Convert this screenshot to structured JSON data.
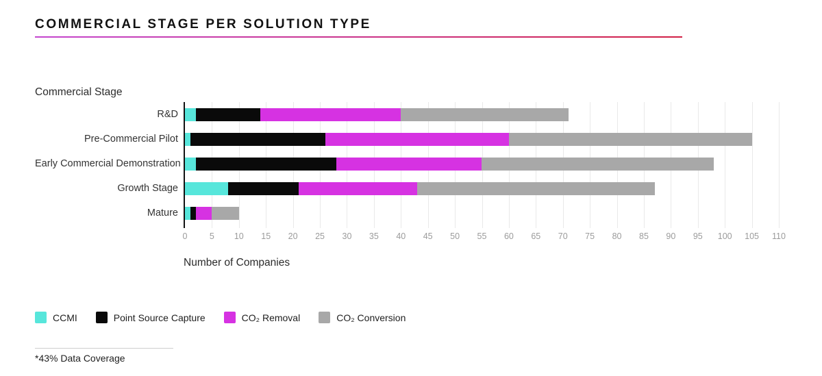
{
  "title": "COMMERCIAL STAGE PER SOLUTION TYPE",
  "title_underline": {
    "gradient_start": "#C445CF",
    "gradient_end": "#D11F44"
  },
  "footnote": "*43% Data Coverage",
  "chart_data": {
    "type": "bar",
    "orientation": "horizontal",
    "stacked": true,
    "y_axis_title": "Commercial Stage",
    "x_axis_title": "Number of Companies",
    "categories": [
      "R&D",
      "Pre-Commercial Pilot",
      "Early Commercial Demonstration",
      "Growth Stage",
      "Mature"
    ],
    "series": [
      {
        "name": "CCMI",
        "color": "#57E6DB",
        "values": [
          2,
          1,
          2,
          8,
          1
        ]
      },
      {
        "name": "Point Source Capture",
        "color": "#0A0A0A",
        "values": [
          12,
          25,
          26,
          13,
          1
        ]
      },
      {
        "name": "CO₂ Removal",
        "color": "#D632E2",
        "values": [
          26,
          34,
          27,
          22,
          3
        ]
      },
      {
        "name": "CO₂ Conversion",
        "color": "#A8A8A8",
        "values": [
          31,
          45,
          43,
          44,
          5
        ]
      }
    ],
    "totals": [
      71,
      105,
      98,
      87,
      10
    ],
    "xlim": [
      0,
      110
    ],
    "xtick_step": 5,
    "grid": "vertical",
    "legend_position": "bottom"
  }
}
